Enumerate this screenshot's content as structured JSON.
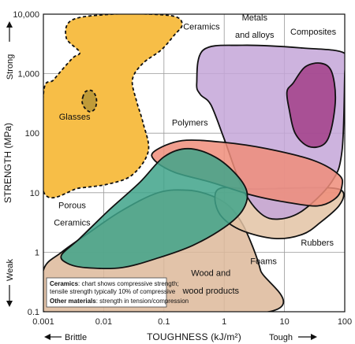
{
  "chart_data": {
    "type": "area",
    "title": "",
    "xlabel": "TOUGHNESS (kJ/m²)",
    "ylabel": "STRENGTH (MPa)",
    "x_scale": "log",
    "y_scale": "log",
    "xlim": [
      0.001,
      100
    ],
    "ylim": [
      0.1,
      10000
    ],
    "x_ticks": [
      "0.001",
      "0.01",
      "0.1",
      "1",
      "10",
      "100"
    ],
    "y_ticks": [
      "0.1",
      "1",
      "10",
      "100",
      "1,000",
      "10,000"
    ],
    "grid": true,
    "x_hints": {
      "left": "Brittle",
      "right": "Tough"
    },
    "y_hints": {
      "top": "Strong",
      "bottom": "Weak"
    },
    "note": {
      "line1_bold": "Ceramics",
      "line1_rest": ": chart shows compressive strength;",
      "line2": "tensile strength typically 10% of compressive",
      "line3_bold": "Other materials",
      "line3_rest": ": strength in tension/compression"
    },
    "regions": [
      {
        "name": "Foams",
        "color": "#ddb89a",
        "dashed": false,
        "points": [
          [
            0.001,
            0.5
          ],
          [
            0.002,
            1
          ],
          [
            0.006,
            2.2
          ],
          [
            0.02,
            5
          ],
          [
            0.08,
            10
          ],
          [
            0.25,
            11
          ],
          [
            0.6,
            9
          ],
          [
            1.2,
            6
          ],
          [
            2,
            3
          ],
          [
            3,
            1.2
          ],
          [
            4,
            0.5
          ],
          [
            5.5,
            0.1
          ],
          [
            0.001,
            0.1
          ]
        ]
      },
      {
        "name": "Rubbers",
        "color": "#e3c3a4",
        "dashed": false,
        "points": [
          [
            0.9,
            12
          ],
          [
            3,
            11.5
          ],
          [
            15,
            12
          ],
          [
            60,
            12
          ],
          [
            95,
            10
          ],
          [
            80,
            6
          ],
          [
            40,
            3.2
          ],
          [
            20,
            2
          ],
          [
            7,
            1.7
          ],
          [
            2,
            2.3
          ],
          [
            0.9,
            4
          ],
          [
            0.7,
            8
          ]
        ]
      },
      {
        "name": "Metals and alloys",
        "color": "#c4a6d8",
        "dashed": false,
        "points": [
          [
            0.35,
            700
          ],
          [
            0.45,
            2500
          ],
          [
            2,
            3000
          ],
          [
            20,
            2700
          ],
          [
            100,
            2200
          ],
          [
            100,
            1000
          ],
          [
            90,
            50
          ],
          [
            60,
            15
          ],
          [
            20,
            5
          ],
          [
            8,
            3.6
          ],
          [
            4,
            4.5
          ],
          [
            2,
            12
          ],
          [
            1,
            80
          ],
          [
            0.6,
            300
          ],
          [
            0.4,
            450
          ]
        ]
      },
      {
        "name": "Composites",
        "color": "#a23e88",
        "dashed": false,
        "points": [
          [
            14,
            700
          ],
          [
            22,
            1300
          ],
          [
            40,
            1500
          ],
          [
            60,
            1100
          ],
          [
            70,
            400
          ],
          [
            60,
            120
          ],
          [
            45,
            65
          ],
          [
            25,
            60
          ],
          [
            15,
            100
          ],
          [
            12,
            250
          ],
          [
            11,
            500
          ]
        ]
      },
      {
        "name": "Polymers",
        "color": "#ef8d7a",
        "dashed": false,
        "points": [
          [
            0.07,
            50
          ],
          [
            0.2,
            75
          ],
          [
            1,
            70
          ],
          [
            5,
            55
          ],
          [
            30,
            35
          ],
          [
            80,
            20
          ],
          [
            90,
            13
          ],
          [
            70,
            8
          ],
          [
            35,
            6
          ],
          [
            10,
            7
          ],
          [
            3,
            9
          ],
          [
            0.6,
            15
          ],
          [
            0.15,
            22
          ],
          [
            0.07,
            35
          ]
        ]
      },
      {
        "name": "Wood and wood products",
        "color": "#3fa38a",
        "dashed": false,
        "points": [
          [
            0.002,
            0.9
          ],
          [
            0.004,
            1.7
          ],
          [
            0.012,
            5
          ],
          [
            0.04,
            15
          ],
          [
            0.1,
            40
          ],
          [
            0.25,
            55
          ],
          [
            0.7,
            40
          ],
          [
            1.6,
            20
          ],
          [
            2.4,
            10
          ],
          [
            2,
            5
          ],
          [
            1,
            2.6
          ],
          [
            0.3,
            1.3
          ],
          [
            0.08,
            0.8
          ],
          [
            0.02,
            0.55
          ],
          [
            0.005,
            0.55
          ],
          [
            0.0025,
            0.65
          ]
        ]
      },
      {
        "name": "Ceramics / Porous Ceramics",
        "color": "#f7be47",
        "dashed": true,
        "points": [
          [
            0.001,
            10.5
          ],
          [
            0.004,
            12
          ],
          [
            0.012,
            14
          ],
          [
            0.03,
            20
          ],
          [
            0.055,
            50
          ],
          [
            0.045,
            150
          ],
          [
            0.035,
            350
          ],
          [
            0.03,
            800
          ],
          [
            0.045,
            1500
          ],
          [
            0.09,
            2500
          ],
          [
            0.15,
            4500
          ],
          [
            0.2,
            6500
          ],
          [
            0.16,
            9000
          ],
          [
            0.06,
            10000
          ],
          [
            0.014,
            10000
          ],
          [
            0.003,
            8000
          ],
          [
            0.0024,
            4000
          ],
          [
            0.004,
            2300
          ],
          [
            0.003,
            1800
          ],
          [
            0.0015,
            800
          ],
          [
            0.001,
            450
          ]
        ]
      },
      {
        "name": "Glasses",
        "color": "#c09b38",
        "dashed": true,
        "points": [
          [
            0.0045,
            400
          ],
          [
            0.005,
            500
          ],
          [
            0.0063,
            520
          ],
          [
            0.0074,
            420
          ],
          [
            0.0076,
            320
          ],
          [
            0.007,
            250
          ],
          [
            0.0058,
            230
          ],
          [
            0.0048,
            270
          ],
          [
            0.0044,
            330
          ]
        ]
      }
    ],
    "labels": [
      {
        "text": "Ceramics",
        "at": [
          0.42,
          5500
        ]
      },
      {
        "text": "Metals",
        "at": [
          3.2,
          7800
        ]
      },
      {
        "text": "and alloys",
        "at": [
          3.2,
          4000
        ]
      },
      {
        "text": "Composites",
        "at": [
          30,
          4500
        ]
      },
      {
        "text": "Glasses",
        "at": [
          0.0033,
          170
        ]
      },
      {
        "text": "Polymers",
        "at": [
          0.27,
          135
        ]
      },
      {
        "text": "Porous",
        "at": [
          0.003,
          5.5
        ]
      },
      {
        "text": "Ceramics",
        "at": [
          0.003,
          2.8
        ]
      },
      {
        "text": "Rubbers",
        "at": [
          35,
          1.3
        ]
      },
      {
        "text": "Foams",
        "at": [
          4.5,
          0.63
        ]
      },
      {
        "text": "Wood and",
        "at": [
          0.6,
          0.4
        ]
      },
      {
        "text": "wood products",
        "at": [
          0.6,
          0.2
        ]
      }
    ]
  }
}
